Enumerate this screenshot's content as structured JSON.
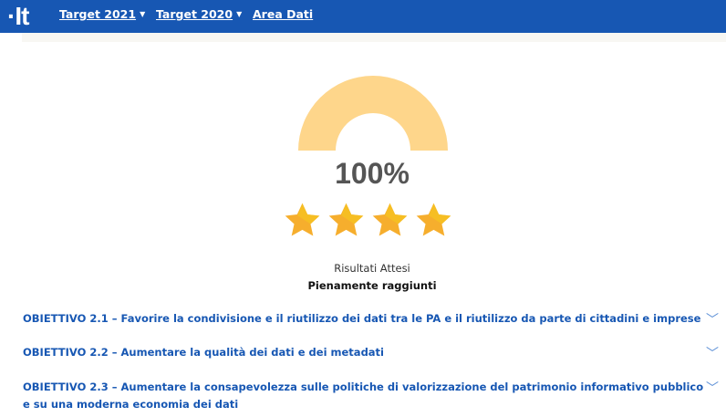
{
  "nav": {
    "logo": "·It",
    "items": [
      {
        "label": "Target 2021",
        "dropdown": true
      },
      {
        "label": "Target 2020",
        "dropdown": true
      },
      {
        "label": "Area Dati",
        "dropdown": false
      }
    ]
  },
  "gauge": {
    "value_percent": 100,
    "label": "100%",
    "color": "#fed68b"
  },
  "rating": {
    "stars": 4,
    "max": 4,
    "color": "#f6ae2d"
  },
  "result": {
    "title": "Risultati Attesi",
    "status": "Pienamente raggiunti"
  },
  "objectives": [
    {
      "label": "OBIETTIVO 2.1 – Favorire la condivisione e il riutilizzo dei dati tra le PA e il riutilizzo da parte di cittadini e imprese"
    },
    {
      "label": "OBIETTIVO 2.2 – Aumentare la qualità dei dati e dei metadati"
    },
    {
      "label": "OBIETTIVO 2.3 – Aumentare la consapevolezza sulle politiche di valorizzazione del patrimonio informativo pubblico e su una moderna economia dei dati"
    }
  ]
}
